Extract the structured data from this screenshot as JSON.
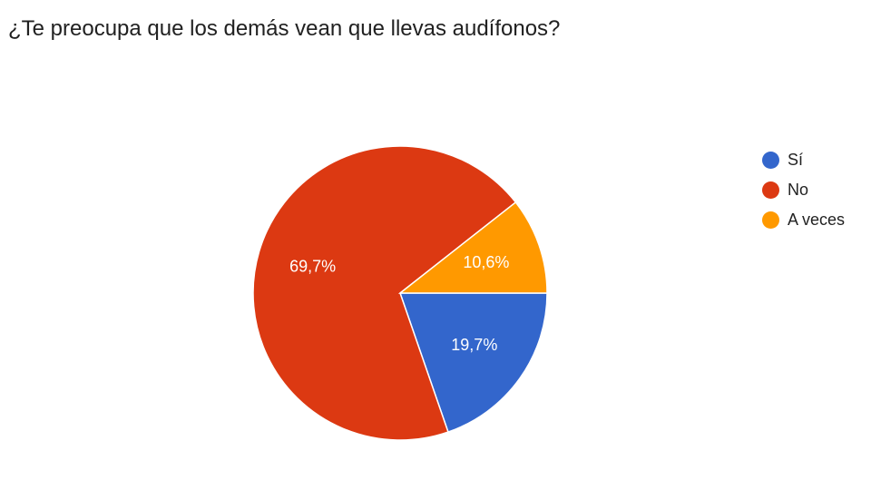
{
  "chart_data": {
    "type": "pie",
    "title": "¿Te preocupa que los demás vean que llevas audífonos?",
    "categories": [
      "Sí",
      "No",
      "A veces"
    ],
    "values": [
      19.7,
      69.7,
      10.6
    ],
    "value_labels": [
      "19,7%",
      "69,7%",
      "10,6%"
    ],
    "colors": [
      "#3366cc",
      "#dc3912",
      "#ff9900"
    ],
    "legend_position": "right",
    "start_angle_deg": 90,
    "direction": "clockwise"
  }
}
